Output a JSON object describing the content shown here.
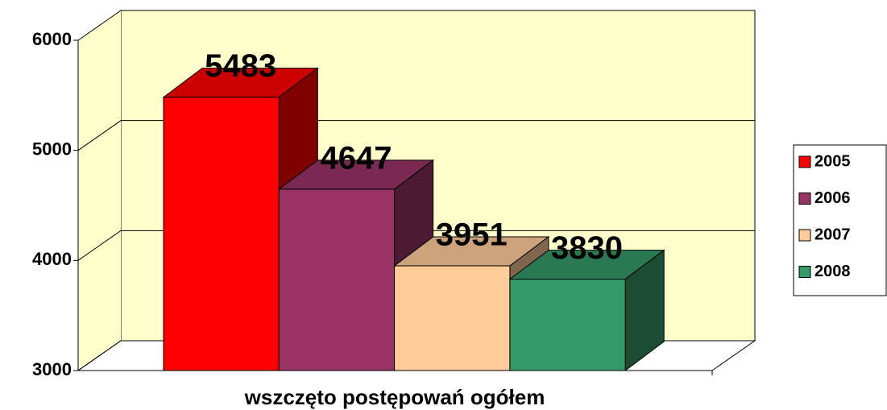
{
  "chart_data": {
    "type": "bar3d",
    "categories": [
      "wszczęto postępowań ogółem"
    ],
    "series": [
      {
        "name": "2005",
        "color": "#ff0000",
        "values": [
          5483
        ]
      },
      {
        "name": "2006",
        "color": "#993366",
        "values": [
          4647
        ]
      },
      {
        "name": "2007",
        "color": "#ffcc99",
        "values": [
          3951
        ]
      },
      {
        "name": "2008",
        "color": "#339966",
        "values": [
          3830
        ]
      }
    ],
    "ylim": [
      3000,
      6000
    ],
    "yticks": [
      3000,
      4000,
      5000,
      6000
    ],
    "grid": true,
    "legend": "right"
  }
}
